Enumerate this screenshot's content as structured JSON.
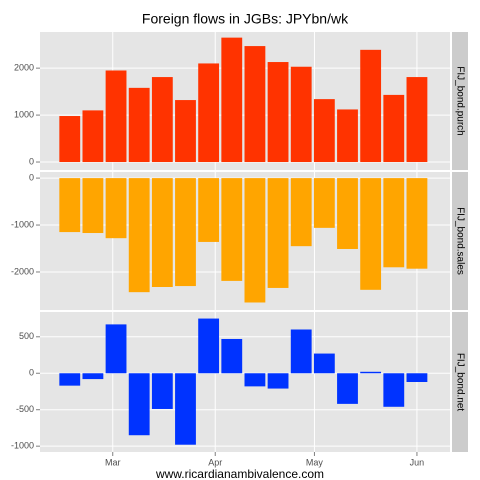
{
  "title": "Foreign flows in JGBs: JPYbn/wk",
  "caption": "www.ricardianambivalence.com",
  "chart_data": [
    {
      "type": "bar",
      "strip_label": "FIJ_bond.purch",
      "color": "#ff3300",
      "x": [
        47,
        54,
        61,
        68,
        75,
        82,
        89,
        96,
        103,
        110,
        117,
        124,
        131,
        138,
        145,
        152
      ],
      "values": [
        980,
        1100,
        1950,
        1580,
        1810,
        1320,
        2100,
        2650,
        2470,
        2130,
        2030,
        1340,
        1120,
        2390,
        1430,
        1810
      ],
      "xlim": [
        38,
        162
      ],
      "ylim": [
        -170,
        2770
      ],
      "yticks": [
        0,
        1000,
        2000
      ],
      "grid": true
    },
    {
      "type": "bar",
      "strip_label": "FIJ_bond.sales",
      "color": "#ffa500",
      "x": [
        47,
        54,
        61,
        68,
        75,
        82,
        89,
        96,
        103,
        110,
        117,
        124,
        131,
        138,
        145,
        152
      ],
      "values": [
        -1150,
        -1170,
        -1280,
        -2430,
        -2320,
        -2300,
        -1360,
        -2190,
        -2650,
        -2340,
        -1450,
        -1060,
        -1510,
        -2380,
        -1900,
        -1930
      ],
      "xlim": [
        38,
        162
      ],
      "ylim": [
        -2810,
        130
      ],
      "yticks": [
        -2000,
        -1000,
        0
      ],
      "grid": true
    },
    {
      "type": "bar",
      "strip_label": "FIJ_bond.net",
      "color": "#0033ff",
      "x": [
        47,
        54,
        61,
        68,
        75,
        82,
        89,
        96,
        103,
        110,
        117,
        124,
        131,
        138,
        145,
        152
      ],
      "values": [
        -170,
        -80,
        670,
        -850,
        -490,
        -980,
        750,
        470,
        -180,
        -210,
        600,
        270,
        -420,
        20,
        -460,
        -120
      ],
      "xlim": [
        38,
        162
      ],
      "ylim": [
        -1080,
        840
      ],
      "yticks": [
        -1000,
        -500,
        0,
        500
      ],
      "xticks": [
        {
          "value": 60,
          "label": "Mar"
        },
        {
          "value": 91,
          "label": "Apr"
        },
        {
          "value": 121,
          "label": "May"
        },
        {
          "value": 152,
          "label": "Jun"
        }
      ],
      "grid": true
    }
  ]
}
